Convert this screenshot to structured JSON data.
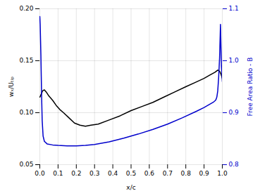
{
  "chart_data": {
    "type": "line",
    "xlabel": "x/c",
    "ylabel": "wₓ/Uₜᵢₚ",
    "y2label": "Free Area Ratio - B",
    "xlim": [
      0,
      1
    ],
    "ylim": [
      0.05,
      0.2
    ],
    "y2lim": [
      0.8,
      1.1
    ],
    "xticks": [
      {
        "value": 0,
        "label": "0.0"
      },
      0.1,
      0.2,
      0.3,
      0.4,
      0.5,
      0.6,
      0.7,
      0.8,
      0.9,
      {
        "value": 1.0,
        "label": "1.0"
      }
    ],
    "yticks": [
      0.05,
      {
        "value": 0.1,
        "label": "0.10"
      },
      0.15,
      {
        "value": 0.2,
        "label": "0.20"
      }
    ],
    "y2ticks": [
      0.8,
      0.9,
      {
        "value": 1.0,
        "label": "1.0"
      },
      1.1
    ],
    "grid": true,
    "series": [
      {
        "color": "#000000",
        "x": [
          0.0,
          0.003,
          0.008,
          0.015,
          0.025,
          0.035,
          0.05,
          0.07,
          0.09,
          0.11,
          0.13,
          0.16,
          0.19,
          0.22,
          0.25,
          0.28,
          0.32,
          0.38,
          0.44,
          0.5,
          0.56,
          0.62,
          0.68,
          0.74,
          0.8,
          0.85,
          0.9,
          0.93,
          0.96,
          0.975,
          0.985,
          0.993,
          1.0
        ],
        "values": [
          0.115,
          0.116,
          0.118,
          0.121,
          0.122,
          0.12,
          0.116,
          0.112,
          0.107,
          0.103,
          0.1,
          0.095,
          0.09,
          0.088,
          0.087,
          0.088,
          0.089,
          0.093,
          0.097,
          0.102,
          0.106,
          0.11,
          0.115,
          0.12,
          0.125,
          0.129,
          0.133,
          0.136,
          0.139,
          0.141,
          0.14,
          0.137,
          0.133
        ]
      },
      {
        "color": "#0000CC",
        "axis": "y2",
        "x": [
          0.0,
          0.002,
          0.004,
          0.006,
          0.008,
          0.01,
          0.013,
          0.018,
          0.025,
          0.04,
          0.07,
          0.1,
          0.15,
          0.2,
          0.25,
          0.3,
          0.38,
          0.46,
          0.54,
          0.62,
          0.7,
          0.78,
          0.86,
          0.9,
          0.93,
          0.95,
          0.96,
          0.965,
          0.97,
          0.975,
          0.98,
          0.985,
          0.99,
          0.995,
          1.0
        ],
        "values": [
          1.085,
          1.07,
          1.04,
          1.01,
          0.97,
          0.93,
          0.885,
          0.855,
          0.845,
          0.84,
          0.838,
          0.837,
          0.836,
          0.836,
          0.837,
          0.839,
          0.844,
          0.851,
          0.859,
          0.868,
          0.878,
          0.89,
          0.903,
          0.91,
          0.916,
          0.92,
          0.923,
          0.925,
          0.93,
          0.942,
          0.968,
          1.005,
          1.07,
          0.99,
          0.96
        ]
      }
    ]
  }
}
